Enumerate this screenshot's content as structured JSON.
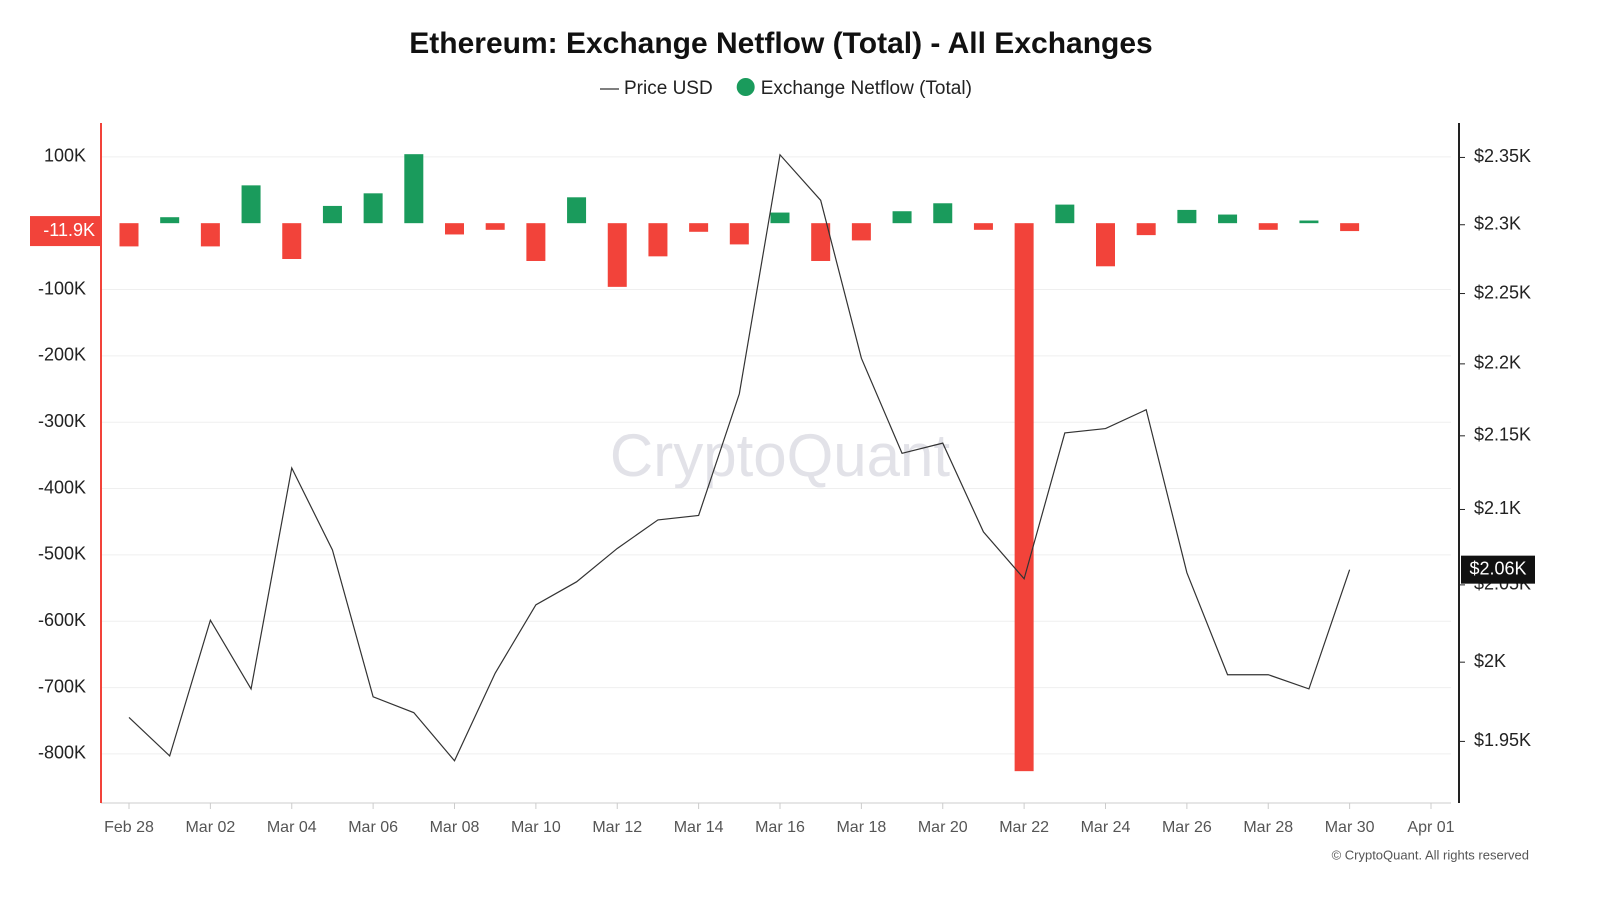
{
  "chart_data": {
    "type": "bar-line",
    "title": "Ethereum: Exchange Netflow (Total) - All Exchanges",
    "watermark": "CryptoQuant",
    "copyright": "© CryptoQuant. All rights reserved",
    "categories": [
      "Feb 28",
      null,
      "Mar 02",
      null,
      "Mar 04",
      null,
      "Mar 06",
      null,
      "Mar 08",
      null,
      "Mar 10",
      null,
      "Mar 12",
      null,
      "Mar 14",
      null,
      "Mar 16",
      null,
      "Mar 18",
      null,
      "Mar 20",
      null,
      "Mar 22",
      null,
      "Mar 24",
      null,
      "Mar 26",
      null,
      "Mar 28",
      null,
      "Mar 30",
      null,
      "Apr 01"
    ],
    "series": [
      {
        "name": "Price USD",
        "type": "line",
        "axis": "y2",
        "color": "#333333",
        "values": [
          1965,
          1941,
          2027,
          1983,
          2128,
          2073,
          1978,
          1968,
          1938,
          1993,
          2037,
          2052,
          2074,
          2093,
          2096,
          2179,
          2352,
          2318,
          2204,
          2138,
          2145,
          2085,
          2054,
          2152,
          2155,
          2168,
          2058,
          1992,
          1992,
          1983,
          2060,
          null,
          null
        ],
        "badge": {
          "value": 2060,
          "label": "$2.06K"
        }
      },
      {
        "name": "Exchange Netflow (Total)",
        "type": "bar",
        "color": "#1a9b5c",
        "negative_color": "#f2433a",
        "values": [
          -35000,
          9000,
          -35000,
          57000,
          -54000,
          26000,
          45000,
          104000,
          -17000,
          -10000,
          -57000,
          39000,
          -96000,
          -50000,
          -13000,
          -32000,
          16000,
          -57000,
          -26000,
          18000,
          30000,
          -10000,
          -826000,
          28000,
          -65000,
          -18000,
          20000,
          13000,
          -10000,
          4000,
          -11900,
          null,
          null
        ],
        "badge": {
          "value": -11900,
          "label": "-11.9K"
        }
      }
    ],
    "ylim": [
      -874000,
      151000
    ],
    "yticks": [
      {
        "value": 100000,
        "label": "100K"
      },
      {
        "value": -100000,
        "label": "-100K"
      },
      {
        "value": -200000,
        "label": "-200K"
      },
      {
        "value": -300000,
        "label": "-300K"
      },
      {
        "value": -400000,
        "label": "-400K"
      },
      {
        "value": -500000,
        "label": "-500K"
      },
      {
        "value": -600000,
        "label": "-600K"
      },
      {
        "value": -700000,
        "label": "-700K"
      },
      {
        "value": -800000,
        "label": "-800K"
      }
    ],
    "y2lim": [
      1912,
      2376
    ],
    "y2log": true,
    "y2ticks": [
      {
        "value": 2350,
        "label": "$2.35K"
      },
      {
        "value": 2300,
        "label": "$2.3K"
      },
      {
        "value": 2250,
        "label": "$2.25K"
      },
      {
        "value": 2200,
        "label": "$2.2K"
      },
      {
        "value": 2150,
        "label": "$2.15K"
      },
      {
        "value": 2100,
        "label": "$2.1K"
      },
      {
        "value": 2050,
        "label": "$2.05K"
      },
      {
        "value": 2000,
        "label": "$2K"
      },
      {
        "value": 1950,
        "label": "$1.95K"
      }
    ],
    "grid": true
  }
}
